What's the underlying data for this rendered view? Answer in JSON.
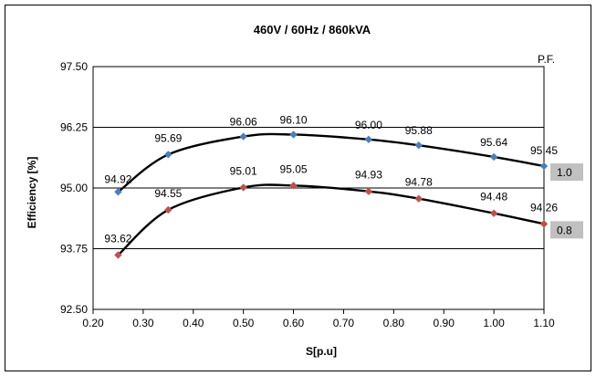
{
  "chart_data": {
    "type": "scatter",
    "title": "460V / 60Hz  / 860kVA",
    "xlabel": "S[p.u]",
    "ylabel": "Efficiency [%]",
    "xlim": [
      0.2,
      1.1
    ],
    "ylim": [
      92.5,
      97.5
    ],
    "xticks": [
      "0.20",
      "0.30",
      "0.40",
      "0.50",
      "0.60",
      "0.70",
      "0.80",
      "0.90",
      "1.00",
      "1.10"
    ],
    "yticks": [
      "92.50",
      "93.75",
      "95.00",
      "96.25",
      "97.50"
    ],
    "grid": "horizontal",
    "legend_title": "P.F.",
    "legend_placement": "right",
    "x": [
      0.25,
      0.35,
      0.5,
      0.6,
      0.75,
      0.85,
      1.0,
      1.1
    ],
    "series": [
      {
        "name": "1.0",
        "color": "#4a7ebf",
        "values": [
          94.92,
          95.69,
          96.06,
          96.1,
          96.0,
          95.88,
          95.64,
          95.45
        ],
        "labels": [
          "94.92",
          "95.69",
          "96.06",
          "96.10",
          "96.00",
          "95.88",
          "95.64",
          "95.45"
        ]
      },
      {
        "name": "0.8",
        "color": "#c0504d",
        "values": [
          93.62,
          94.55,
          95.01,
          95.05,
          94.93,
          94.78,
          94.48,
          94.26
        ],
        "labels": [
          "93.62",
          "94.55",
          "95.01",
          "95.05",
          "94.93",
          "94.78",
          "94.48",
          "94.26"
        ]
      }
    ]
  }
}
